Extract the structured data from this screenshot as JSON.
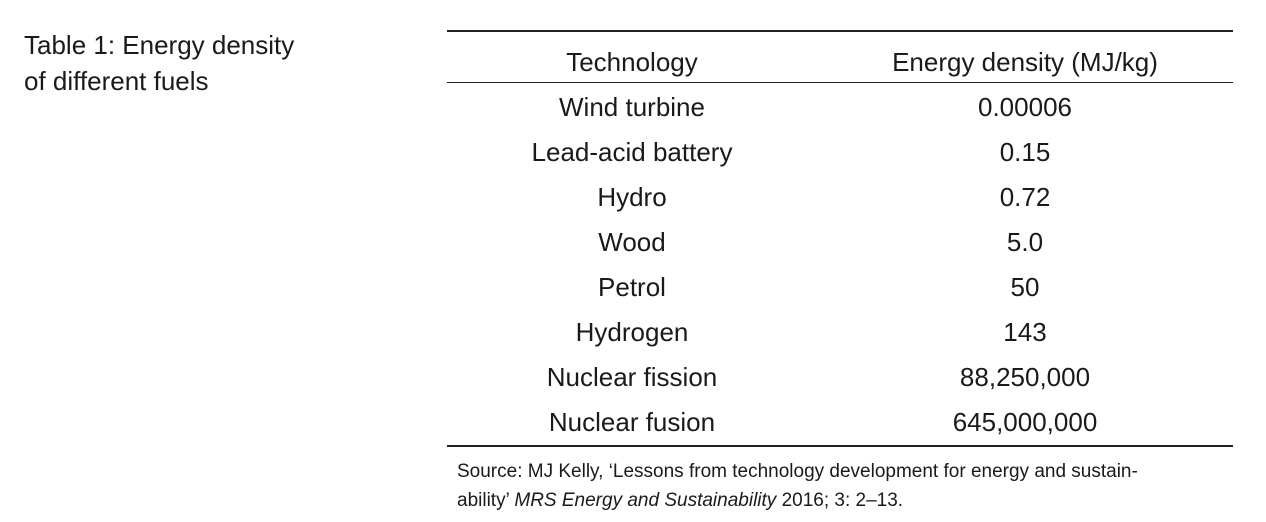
{
  "caption": {
    "line1": "Table 1: Energy density",
    "line2": "of different fuels"
  },
  "table": {
    "headers": [
      "Technology",
      "Energy density (MJ/kg)"
    ],
    "rows": [
      [
        "Wind turbine",
        "0.00006"
      ],
      [
        "Lead-acid battery",
        "0.15"
      ],
      [
        "Hydro",
        "0.72"
      ],
      [
        "Wood",
        "5.0"
      ],
      [
        "Petrol",
        "50"
      ],
      [
        "Hydrogen",
        "143"
      ],
      [
        "Nuclear fission",
        "88,250,000"
      ],
      [
        "Nuclear fusion",
        "645,000,000"
      ]
    ]
  },
  "source": {
    "prefix": "Source: MJ Kelly, ‘Lessons from technology development for energy and sustain-",
    "line2_start": "ability’ ",
    "journal": "MRS Energy and Sustainability",
    "suffix": " 2016; 3: 2–13."
  }
}
